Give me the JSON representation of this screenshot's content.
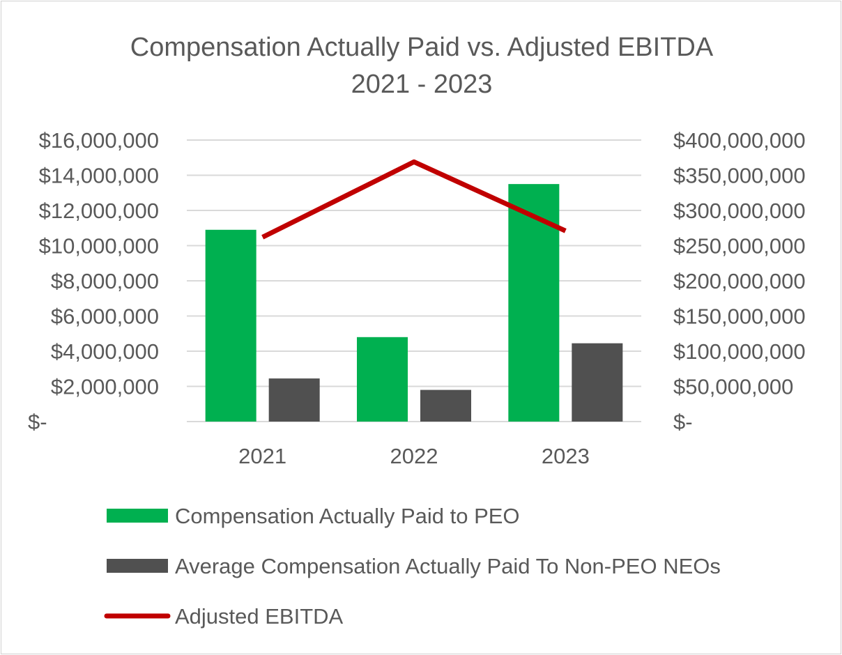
{
  "chart_data": {
    "type": "bar",
    "title": [
      "Compensation Actually Paid vs. Adjusted EBITDA",
      "2021 - 2023"
    ],
    "categories": [
      "2021",
      "2022",
      "2023"
    ],
    "series": [
      {
        "name": "Compensation Actually Paid to PEO",
        "type": "bar",
        "axis": "left",
        "color": "#00b050",
        "values": [
          10900000,
          4800000,
          13500000
        ]
      },
      {
        "name": "Average Compensation Actually Paid To Non-PEO NEOs",
        "type": "bar",
        "axis": "left",
        "color": "#505050",
        "values": [
          2450000,
          1800000,
          4450000
        ]
      },
      {
        "name": "Adjusted EBITDA",
        "type": "line",
        "axis": "right",
        "color": "#c00000",
        "values": [
          262000000,
          369000000,
          271000000
        ]
      }
    ],
    "left_axis": {
      "ylim": [
        0,
        16000000
      ],
      "ticks": [
        0,
        2000000,
        4000000,
        6000000,
        8000000,
        10000000,
        12000000,
        14000000,
        16000000
      ],
      "tick_labels": [
        "$-",
        "$2,000,000",
        "$4,000,000",
        "$6,000,000",
        "$8,000,000",
        "$10,000,000",
        "$12,000,000",
        "$14,000,000",
        "$16,000,000"
      ]
    },
    "right_axis": {
      "ylim": [
        0,
        400000000
      ],
      "ticks": [
        0,
        50000000,
        100000000,
        150000000,
        200000000,
        250000000,
        300000000,
        350000000,
        400000000
      ],
      "tick_labels": [
        "$-",
        "$50,000,000",
        "$100,000,000",
        "$150,000,000",
        "$200,000,000",
        "$250,000,000",
        "$300,000,000",
        "$350,000,000",
        "$400,000,000"
      ]
    },
    "grid": true,
    "legend": "bottom"
  }
}
